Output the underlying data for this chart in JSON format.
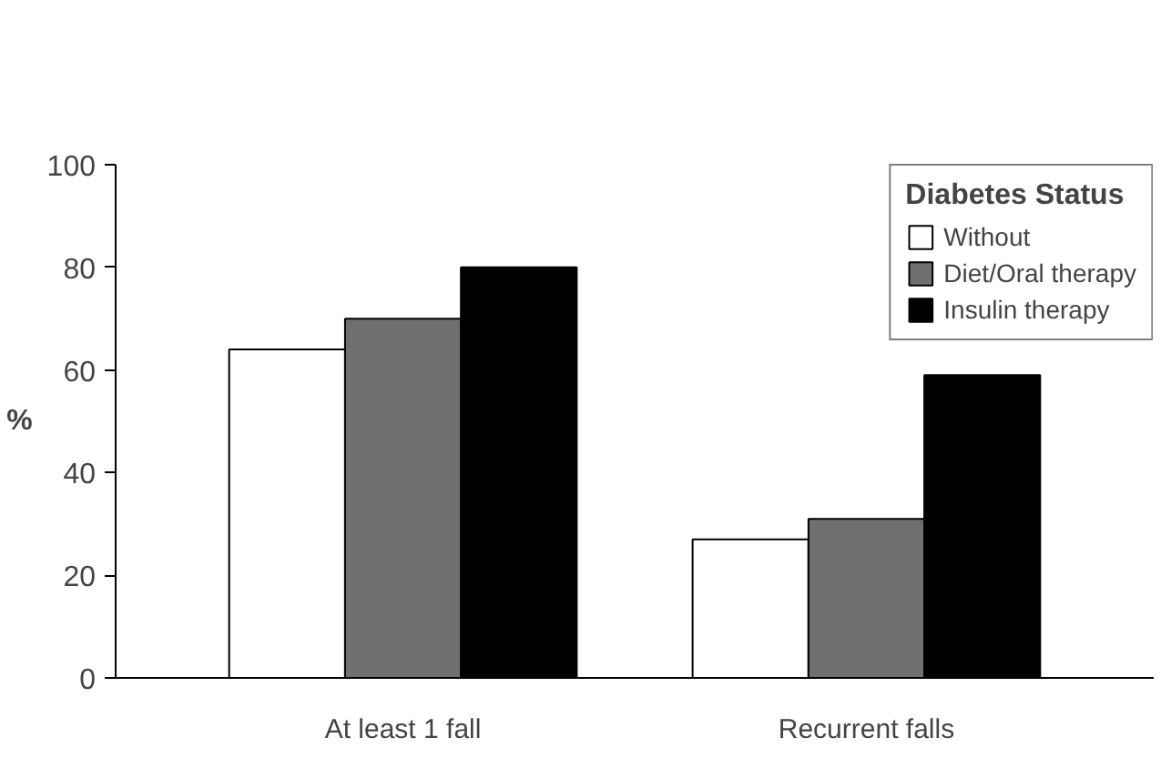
{
  "chart_data": {
    "type": "bar",
    "ylabel": "%",
    "legend_title": "Diabetes Status",
    "categories": [
      "At least 1 fall",
      "Recurrent falls"
    ],
    "series": [
      {
        "name": "Without",
        "color": "#ffffff",
        "values": [
          64,
          27
        ]
      },
      {
        "name": "Diet/Oral therapy",
        "color": "#707070",
        "values": [
          70,
          31
        ]
      },
      {
        "name": "Insulin therapy",
        "color": "#000000",
        "values": [
          80,
          59
        ]
      }
    ],
    "ylim": [
      0,
      100
    ],
    "yticks": [
      0,
      20,
      40,
      60,
      80,
      100
    ],
    "grid": false,
    "legend": "top right"
  }
}
